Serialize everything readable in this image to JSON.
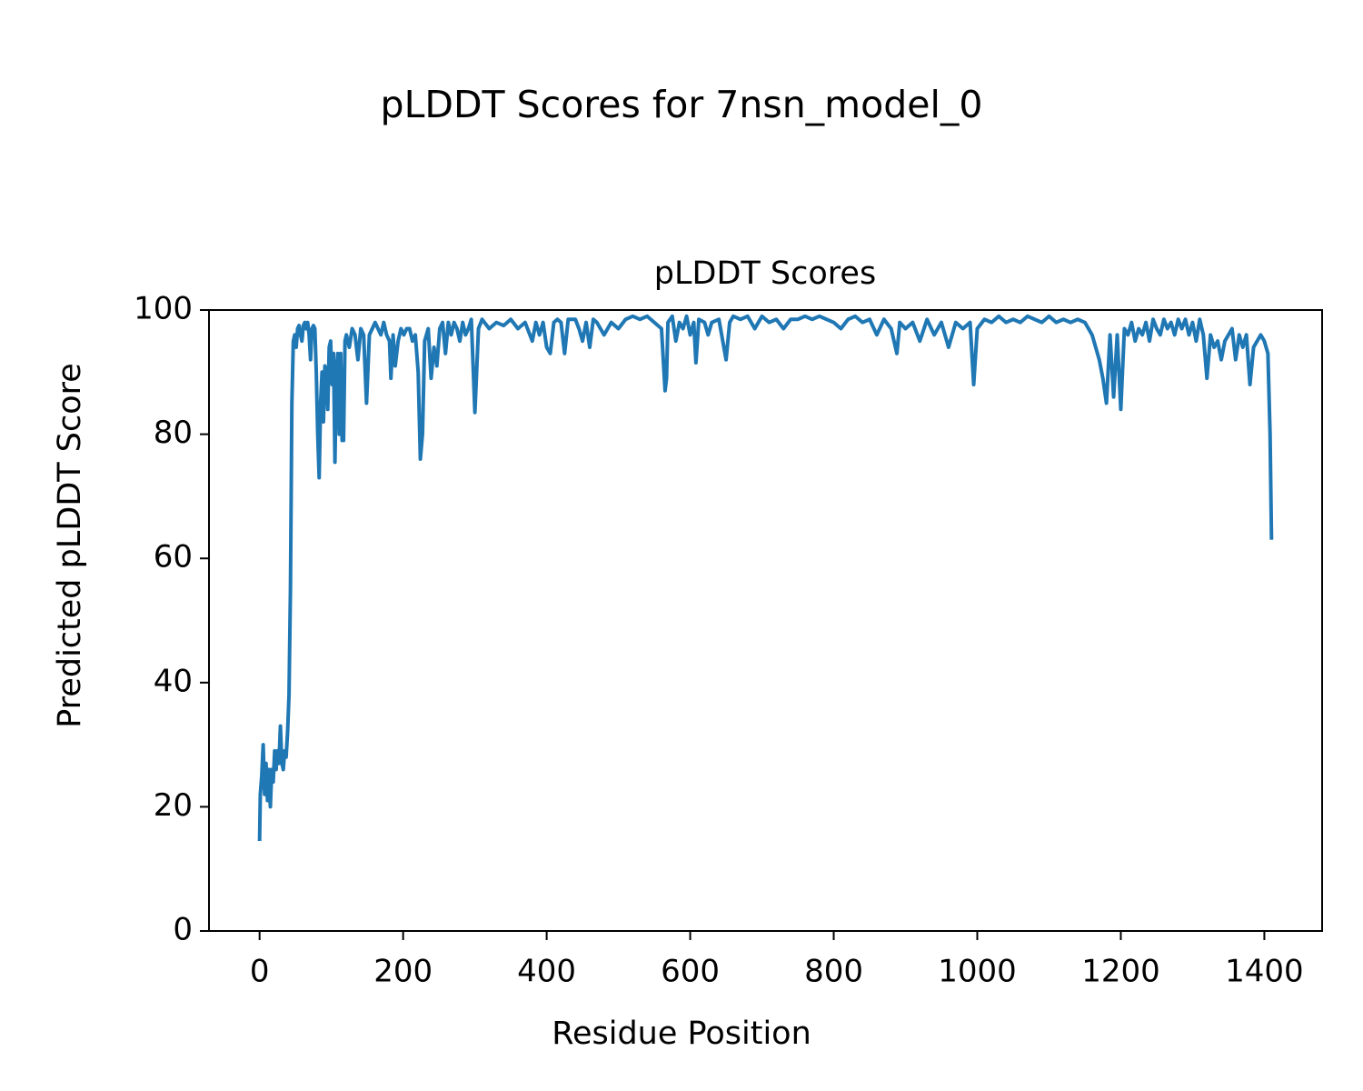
{
  "chart_data": {
    "type": "line",
    "suptitle": "pLDDT Scores for 7nsn_model_0",
    "title": "pLDDT Scores",
    "xlabel": "Residue Position",
    "ylabel": "Predicted pLDDT Score",
    "color": "#1f77b4",
    "xlim": [
      -70.5,
      1480.5
    ],
    "ylim": [
      0,
      100
    ],
    "xticks": [
      0,
      200,
      400,
      600,
      800,
      1000,
      1200,
      1400
    ],
    "yticks": [
      0,
      20,
      40,
      60,
      80,
      100
    ],
    "x": [
      0,
      1,
      3,
      5,
      7,
      9,
      11,
      13,
      15,
      17,
      19,
      21,
      23,
      25,
      27,
      29,
      31,
      33,
      35,
      37,
      39,
      41,
      43,
      45,
      47,
      49,
      51,
      53,
      55,
      57,
      59,
      61,
      63,
      65,
      67,
      69,
      71,
      73,
      75,
      77,
      79,
      81,
      83,
      85,
      87,
      89,
      91,
      93,
      95,
      97,
      99,
      101,
      103,
      105,
      107,
      109,
      111,
      113,
      115,
      117,
      119,
      121,
      125,
      129,
      133,
      137,
      141,
      145,
      149,
      153,
      157,
      161,
      165,
      169,
      173,
      177,
      181,
      183,
      186,
      189,
      193,
      197,
      201,
      205,
      209,
      213,
      217,
      221,
      224,
      227,
      230,
      235,
      239,
      243,
      247,
      251,
      255,
      259,
      263,
      267,
      271,
      275,
      279,
      283,
      287,
      291,
      295,
      300,
      305,
      310,
      320,
      330,
      340,
      350,
      360,
      370,
      380,
      385,
      390,
      395,
      400,
      405,
      410,
      415,
      420,
      425,
      430,
      440,
      445,
      450,
      455,
      460,
      465,
      470,
      480,
      490,
      500,
      510,
      520,
      530,
      540,
      550,
      560,
      565,
      567,
      569,
      575,
      580,
      585,
      590,
      595,
      600,
      605,
      608,
      612,
      620,
      625,
      630,
      640,
      650,
      655,
      660,
      670,
      680,
      690,
      700,
      710,
      720,
      730,
      740,
      750,
      760,
      770,
      780,
      790,
      800,
      810,
      820,
      830,
      840,
      850,
      860,
      870,
      880,
      888,
      892,
      900,
      910,
      920,
      930,
      940,
      950,
      960,
      970,
      980,
      990,
      995,
      1000,
      1010,
      1020,
      1030,
      1040,
      1050,
      1060,
      1070,
      1080,
      1090,
      1100,
      1110,
      1120,
      1130,
      1140,
      1150,
      1160,
      1165,
      1170,
      1175,
      1180,
      1185,
      1190,
      1195,
      1200,
      1205,
      1210,
      1215,
      1220,
      1225,
      1230,
      1235,
      1240,
      1245,
      1250,
      1255,
      1260,
      1265,
      1270,
      1275,
      1280,
      1285,
      1290,
      1295,
      1300,
      1305,
      1310,
      1315,
      1320,
      1325,
      1330,
      1335,
      1340,
      1345,
      1350,
      1355,
      1360,
      1365,
      1370,
      1375,
      1380,
      1385,
      1390,
      1395,
      1400,
      1405,
      1408,
      1410
    ],
    "values": [
      14.5,
      22,
      25,
      30,
      22,
      27,
      21,
      26,
      20,
      26,
      24,
      29,
      26,
      29,
      27,
      33,
      27,
      26,
      29,
      28,
      32,
      38,
      55,
      85,
      95,
      96,
      94,
      97,
      97.5,
      96,
      95,
      97.5,
      98,
      97,
      98,
      96,
      92,
      97,
      97.5,
      97,
      90,
      80,
      73,
      85,
      90,
      82,
      91,
      90,
      84,
      94,
      95,
      88,
      93,
      75.5,
      90,
      93,
      80,
      93,
      79,
      79,
      95,
      96,
      94,
      97,
      96,
      92,
      97,
      96,
      85,
      96,
      97,
      98,
      97,
      96,
      98,
      96,
      95,
      89,
      96,
      91,
      95,
      97,
      96,
      97,
      97,
      95,
      96,
      90,
      76,
      80,
      95,
      97,
      89,
      94,
      91,
      97,
      98,
      93,
      98,
      96,
      98,
      97,
      95,
      98,
      96,
      97,
      98.5,
      83.5,
      97,
      98.5,
      97,
      98,
      97.5,
      98.5,
      97,
      98,
      95,
      98,
      96,
      98,
      94,
      93,
      98,
      98.5,
      98,
      93,
      98.5,
      98.5,
      97,
      95,
      98,
      94,
      98.5,
      98,
      96,
      98,
      97,
      98.5,
      99,
      98.5,
      99,
      98,
      97,
      87,
      89,
      98,
      99,
      95,
      98,
      97,
      99,
      96,
      98,
      91.5,
      98.5,
      98,
      96,
      98,
      98.5,
      92,
      98,
      99,
      98.5,
      99,
      97,
      99,
      98,
      98.5,
      97,
      98.5,
      98.5,
      99,
      98.5,
      99,
      98.5,
      98,
      97,
      98.5,
      99,
      98,
      98.5,
      96,
      98.5,
      97,
      93,
      98,
      97,
      98,
      95,
      98.5,
      96,
      98,
      94,
      98,
      97,
      98,
      88,
      97,
      98.5,
      98,
      99,
      98,
      98.5,
      98,
      99,
      98.5,
      98,
      99,
      98,
      98.5,
      98,
      98.5,
      98,
      96,
      94,
      92,
      89,
      85,
      96,
      86,
      96,
      84,
      97,
      96,
      98,
      95,
      97,
      96,
      98,
      95,
      98.5,
      97,
      96,
      98.5,
      97,
      98,
      96,
      98.5,
      97,
      98.5,
      96,
      98,
      95,
      98.5,
      96,
      89,
      96,
      94,
      95,
      92,
      95,
      96,
      97,
      92,
      96,
      94,
      96,
      88,
      94,
      95,
      96,
      95,
      93,
      80,
      63
    ]
  }
}
